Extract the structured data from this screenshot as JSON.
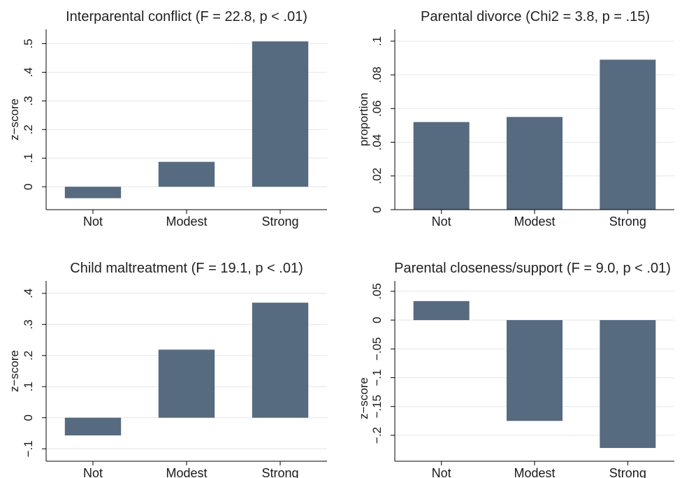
{
  "chart_data": [
    {
      "type": "bar",
      "title": "Interparental conflict (F = 22.8, p < .01)",
      "ylabel": "z−score",
      "categories": [
        "Not",
        "Modest",
        "Strong"
      ],
      "values": [
        -0.04,
        0.087,
        0.508
      ],
      "ylim": [
        -0.08,
        0.55
      ],
      "yticks": [
        0,
        0.1,
        0.2,
        0.3,
        0.4,
        0.5
      ],
      "yticklabels": [
        "0",
        ".1",
        ".2",
        ".3",
        ".4",
        ".5"
      ],
      "grid": true,
      "color": "#566a80"
    },
    {
      "type": "bar",
      "title": "Parental divorce (Chi2 = 3.8, p = .15)",
      "ylabel": "proportion",
      "categories": [
        "Not",
        "Modest",
        "Strong"
      ],
      "values": [
        0.052,
        0.055,
        0.089
      ],
      "ylim": [
        0,
        0.107
      ],
      "yticks": [
        0,
        0.02,
        0.04,
        0.06,
        0.08,
        0.1
      ],
      "yticklabels": [
        "0",
        ".02",
        ".04",
        ".06",
        ".08",
        ".1"
      ],
      "grid": true,
      "color": "#566a80"
    },
    {
      "type": "bar",
      "title": "Child maltreatment (F = 19.1, p < .01)",
      "ylabel": "z−score",
      "categories": [
        "Not",
        "Modest",
        "Strong"
      ],
      "values": [
        -0.057,
        0.219,
        0.37
      ],
      "ylim": [
        -0.14,
        0.44
      ],
      "yticks": [
        -0.1,
        0,
        0.1,
        0.2,
        0.3,
        0.4
      ],
      "yticklabels": [
        "−.1",
        "0",
        ".1",
        ".2",
        ".3",
        ".4"
      ],
      "grid": true,
      "color": "#566a80"
    },
    {
      "type": "bar",
      "title": "Parental closeness/support (F = 9.0, p < .01)",
      "ylabel": "z−score",
      "categories": [
        "Not",
        "Modest",
        "Strong"
      ],
      "values": [
        0.033,
        -0.175,
        -0.222
      ],
      "ylim": [
        -0.245,
        0.068
      ],
      "yticks": [
        -0.2,
        -0.15,
        -0.1,
        -0.05,
        0,
        0.05
      ],
      "yticklabels": [
        "−.2",
        "−.15",
        "−.1",
        "−.05",
        "0",
        ".05"
      ],
      "grid": true,
      "color": "#566a80"
    }
  ]
}
